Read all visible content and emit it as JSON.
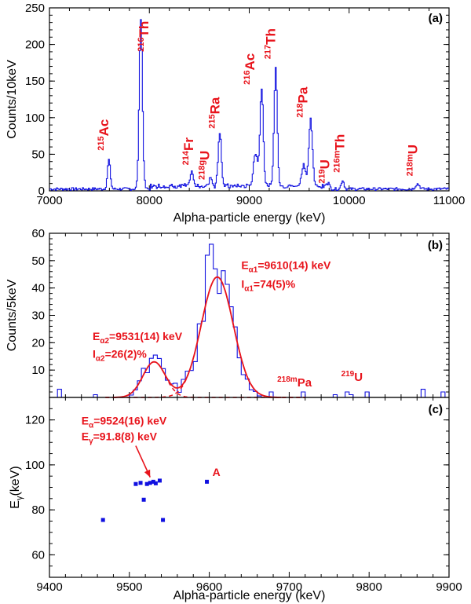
{
  "chart_data": [
    {
      "panel": "(a)",
      "type": "line",
      "xlabel": "Alpha-particle energy (keV)",
      "ylabel": "Counts/10keV",
      "xlim": [
        7000,
        11000
      ],
      "ylim": [
        0,
        250
      ],
      "xticks": [
        "7000",
        "8000",
        "9000",
        "10000",
        "11000"
      ],
      "yticks": [
        "0",
        "50",
        "100",
        "150",
        "200",
        "250"
      ],
      "peaks": [
        {
          "center": 7590,
          "height": 40,
          "width": 14
        },
        {
          "center": 7910,
          "height": 232,
          "width": 16
        },
        {
          "center": 8420,
          "height": 20,
          "width": 14
        },
        {
          "center": 8610,
          "height": 13,
          "width": 14
        },
        {
          "center": 8700,
          "height": 75,
          "width": 16
        },
        {
          "center": 9060,
          "height": 45,
          "width": 22
        },
        {
          "center": 9120,
          "height": 135,
          "width": 16
        },
        {
          "center": 9260,
          "height": 160,
          "width": 16
        },
        {
          "center": 9540,
          "height": 30,
          "width": 20
        },
        {
          "center": 9610,
          "height": 90,
          "width": 18
        },
        {
          "center": 9790,
          "height": 6,
          "width": 14
        },
        {
          "center": 9930,
          "height": 12,
          "width": 14
        },
        {
          "center": 10680,
          "height": 7,
          "width": 20
        }
      ],
      "baseline": 3,
      "labels": [
        {
          "sup": "215",
          "base": "Ac",
          "x": 7590,
          "y": 55
        },
        {
          "sup": "216",
          "base": "Th",
          "x": 7990,
          "y": 190
        },
        {
          "sup": "214",
          "base": "Fr",
          "x": 8440,
          "y": 35
        },
        {
          "sup": "218g",
          "base": "U",
          "x": 8600,
          "y": 15
        },
        {
          "sup": "215",
          "base": "Ra",
          "x": 8700,
          "y": 85
        },
        {
          "sup": "216",
          "base": "Ac",
          "x": 9050,
          "y": 145
        },
        {
          "sup": "217",
          "base": "Th",
          "x": 9260,
          "y": 180
        },
        {
          "sup": "218",
          "base": "Pa",
          "x": 9580,
          "y": 100
        },
        {
          "sup": "219",
          "base": "U",
          "x": 9800,
          "y": 10
        },
        {
          "sup": "216m",
          "base": "Th",
          "x": 9950,
          "y": 25
        },
        {
          "sup": "218m",
          "base": "U",
          "x": 10680,
          "y": 20
        }
      ]
    },
    {
      "panel": "(b)",
      "type": "line",
      "ylabel": "Counts/5keV",
      "xlim": [
        9400,
        9900
      ],
      "ylim": [
        0,
        60
      ],
      "xticks": [
        "9400",
        "9500",
        "9600",
        "9700",
        "9800",
        "9900"
      ],
      "yticks": [
        "10",
        "20",
        "30",
        "40",
        "50",
        "60"
      ],
      "fits": [
        {
          "center": 9531,
          "amplitude": 13,
          "sigma": 14
        },
        {
          "center": 9610,
          "amplitude": 44,
          "sigma": 20
        }
      ],
      "annotations": [
        {
          "e_sub": "α1",
          "e_value": "=9610(14) keV",
          "i_sub": "α1",
          "i_value": "=74(5)%",
          "x": 9640,
          "y1": 47,
          "y2": 40
        },
        {
          "e_sub": "α2",
          "e_value": "=9531(14) keV",
          "i_sub": "α2",
          "i_value": "=26(2)%",
          "x": 9454,
          "y1": 21,
          "y2": 14.5
        },
        {
          "sup": "218m",
          "base": "Pa",
          "x": 9685,
          "y": 4
        },
        {
          "sup": "219",
          "base": "U",
          "x": 9765,
          "y": 6
        }
      ]
    },
    {
      "panel": "(c)",
      "type": "scatter",
      "xlabel": "Alpha-particle energy (keV)",
      "ylabel_base": "E",
      "ylabel_sub": "γ",
      "ylabel_unit": "(keV)",
      "xlim": [
        9400,
        9900
      ],
      "ylim": [
        50,
        130
      ],
      "xticks": [
        "9400",
        "9500",
        "9600",
        "9700",
        "9800",
        "9900"
      ],
      "yticks": [
        "60",
        "80",
        "100",
        "120"
      ],
      "points": [
        {
          "x": 9467,
          "y": 75.5
        },
        {
          "x": 9508,
          "y": 91.5
        },
        {
          "x": 9514,
          "y": 92
        },
        {
          "x": 9518,
          "y": 84.5
        },
        {
          "x": 9522,
          "y": 91.5
        },
        {
          "x": 9526,
          "y": 92
        },
        {
          "x": 9530,
          "y": 92.5
        },
        {
          "x": 9533,
          "y": 91.8
        },
        {
          "x": 9538,
          "y": 93
        },
        {
          "x": 9542,
          "y": 75.5
        },
        {
          "x": 9597,
          "y": 92.5
        }
      ],
      "annotation": {
        "e_sub": "α",
        "e_value": "=9524(16) keV",
        "g_sub": "γ",
        "g_value": "=91.8(8) keV",
        "x": 9440,
        "y1": 118,
        "y2": 111
      },
      "point_label": {
        "text": "A",
        "x": 9604,
        "y": 95
      }
    }
  ]
}
